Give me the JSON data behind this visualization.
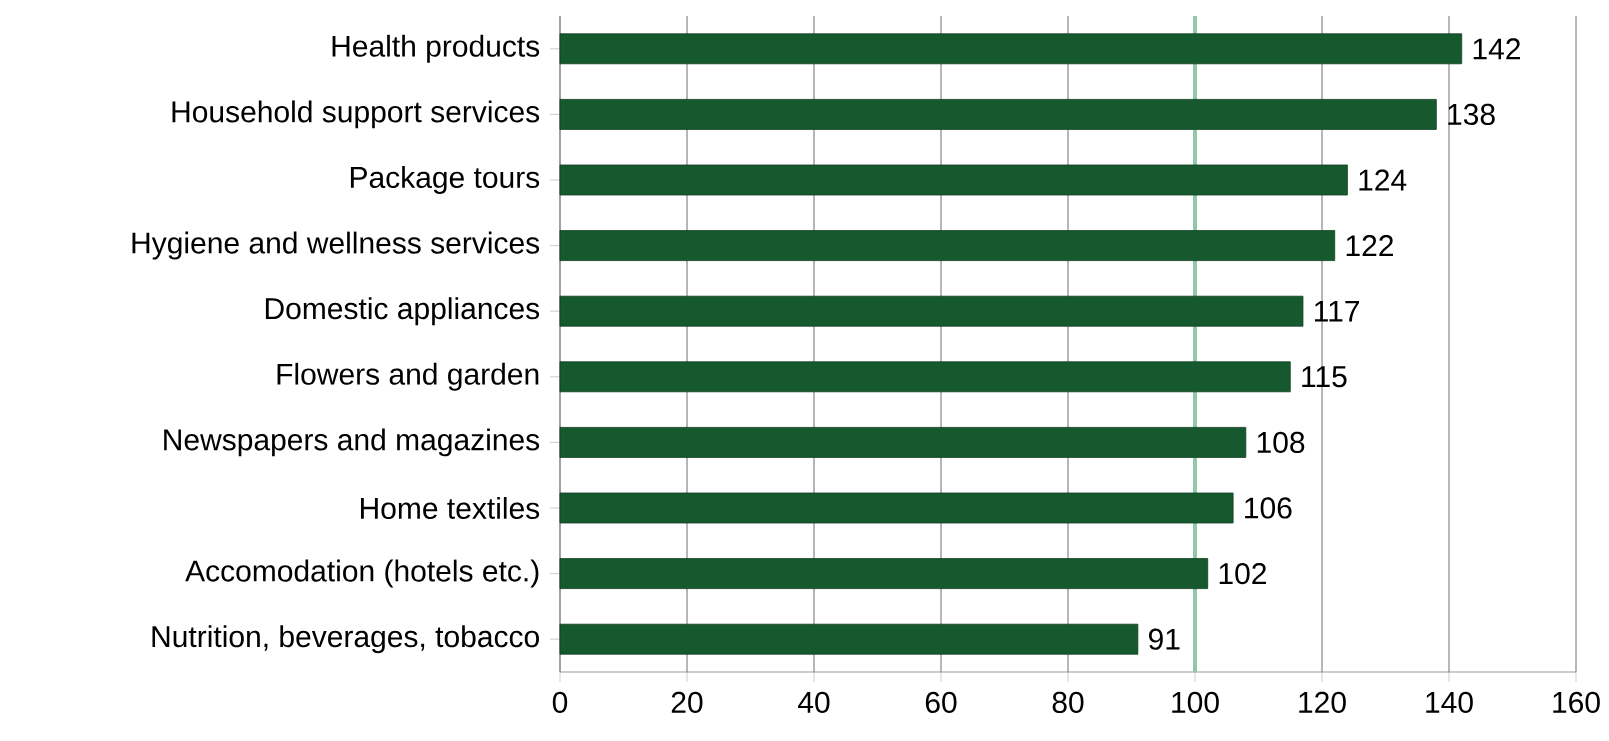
{
  "chart_data": {
    "type": "bar",
    "orientation": "horizontal",
    "categories": [
      "Health products",
      "Household support services",
      "Package tours",
      "Hygiene and wellness services",
      "Domestic appliances",
      "Flowers and garden",
      "Newspapers and magazines",
      "Home textiles",
      "Accomodation (hotels etc.)",
      "Nutrition, beverages, tobacco"
    ],
    "values": [
      142,
      138,
      124,
      122,
      117,
      115,
      108,
      106,
      102,
      91
    ],
    "color": "#17592f",
    "data_labels": true,
    "xlim": [
      0,
      160
    ],
    "xticks": [
      0,
      20,
      40,
      60,
      80,
      100,
      120,
      140,
      160
    ],
    "grid": "x",
    "ref_lines": [
      {
        "axis": "x",
        "value": 100,
        "color": "#8fc9a8"
      }
    ]
  }
}
